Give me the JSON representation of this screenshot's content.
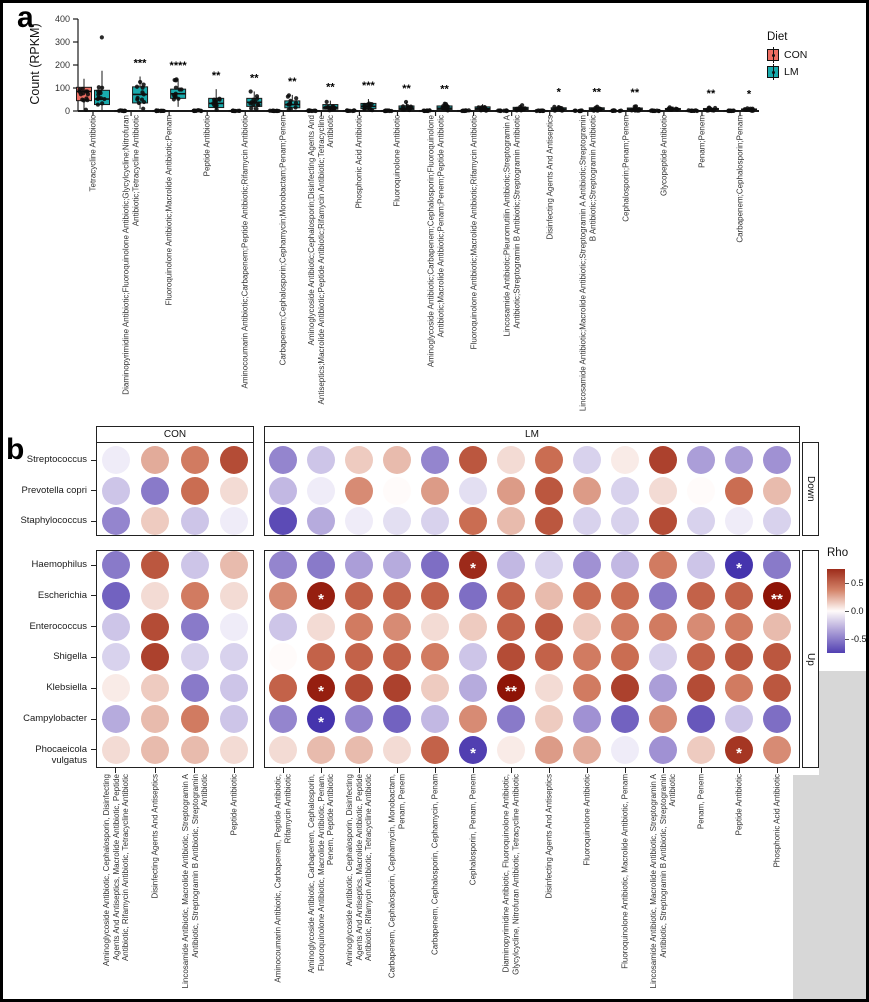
{
  "chart_data": [
    {
      "type": "box",
      "panel_label": "a",
      "title": "",
      "xlabel": "",
      "ylabel": "Count (RPKM)",
      "ylim": [
        0,
        400
      ],
      "yticks": [
        0,
        100,
        200,
        300,
        400
      ],
      "groups": [
        "CON",
        "LM"
      ],
      "legend": {
        "title": "Diet",
        "items": [
          {
            "label": "CON",
            "color": "#EE6E63"
          },
          {
            "label": "LM",
            "color": "#19ABAD"
          }
        ]
      },
      "box_stat_order": [
        "min",
        "q1",
        "median",
        "q3",
        "max"
      ],
      "categories": [
        {
          "label": "Tetracycline Antibiotic",
          "significance": "",
          "con": [
            2,
            45,
            85,
            103,
            140
          ],
          "con_outliers": [],
          "lm": [
            3,
            28,
            52,
            90,
            175
          ],
          "lm_outliers": [
            320
          ]
        },
        {
          "label": "Diaminopyrimidine Antibiotic;Fluoroquinolone Antibiotic;Glycylcycline;Nitrofuran Antibiotic;Tetracycline Antibiotic",
          "significance": "***",
          "con": [
            0,
            0,
            1,
            2,
            4
          ],
          "con_outliers": [],
          "lm": [
            8,
            35,
            72,
            105,
            150
          ],
          "lm_outliers": []
        },
        {
          "label": "Fluoroquinolone Antibiotic;Macrolide Antibiotic;Penam",
          "significance": "****",
          "con": [
            0,
            0,
            1,
            2,
            4
          ],
          "con_outliers": [],
          "lm": [
            18,
            55,
            75,
            95,
            140
          ],
          "lm_outliers": []
        },
        {
          "label": "Peptide Antibiotic",
          "significance": "**",
          "con": [
            0,
            0,
            1,
            2,
            4
          ],
          "con_outliers": [],
          "lm": [
            4,
            15,
            33,
            55,
            95
          ],
          "lm_outliers": []
        },
        {
          "label": "Aminocoumarin Antibiotic;Carbapenem;Peptide Antibiotic;Rifamycin Antibiotic",
          "significance": "**",
          "con": [
            0,
            0,
            1,
            2,
            4
          ],
          "con_outliers": [],
          "lm": [
            5,
            20,
            38,
            55,
            85
          ],
          "lm_outliers": []
        },
        {
          "label": "Carbapenem;Cephalosporin;Cephamycin;Monobactam;Penam;Penem",
          "significance": "**",
          "con": [
            0,
            0,
            1,
            2,
            4
          ],
          "con_outliers": [],
          "lm": [
            4,
            14,
            28,
            44,
            70
          ],
          "lm_outliers": []
        },
        {
          "label": "Aminoglycoside Antibiotic;Cephalosporin;Disinfecting Agents And Antiseptics;Macrolide Antibiotic;Peptide Antibiotic;Rifamycin Antibiotic;Tetracycline Antibiotic",
          "significance": "**",
          "con": [
            0,
            0,
            1,
            2,
            3
          ],
          "con_outliers": [],
          "lm": [
            2,
            8,
            15,
            28,
            45
          ],
          "lm_outliers": []
        },
        {
          "label": "Phosphonic Acid Antibiotic",
          "significance": "***",
          "con": [
            0,
            0,
            1,
            2,
            3
          ],
          "con_outliers": [],
          "lm": [
            2,
            10,
            20,
            33,
            52
          ],
          "lm_outliers": []
        },
        {
          "label": "Fluoroquinolone Antibiotic",
          "significance": "**",
          "con": [
            0,
            0,
            1,
            2,
            3
          ],
          "con_outliers": [],
          "lm": [
            2,
            6,
            12,
            22,
            40
          ],
          "lm_outliers": []
        },
        {
          "label": "Aminoglycoside Antibiotic;Carbapenem;Cephalosporin;Fluoroquinolone Antibiotic;Macrolide Antibiotic;Penam;Penem;Peptide Antibiotic",
          "significance": "**",
          "con": [
            0,
            0,
            1,
            2,
            3
          ],
          "con_outliers": [],
          "lm": [
            2,
            6,
            12,
            22,
            38
          ],
          "lm_outliers": []
        },
        {
          "label": "Fluoroquinolone Antibiotic;Macrolide Antibiotic;Rifamycin Antibiotic",
          "significance": "",
          "con": [
            0,
            0,
            1,
            2,
            3
          ],
          "con_outliers": [],
          "lm": [
            1,
            5,
            10,
            18,
            30
          ],
          "lm_outliers": []
        },
        {
          "label": "Lincosamide Antibiotic;Pleuromutilin Antibiotic;Streptogramin A Antibiotic;Streptogramin B Antibiotic;Streptogramin Antibiotic",
          "significance": "",
          "con": [
            0,
            0,
            1,
            2,
            3
          ],
          "con_outliers": [],
          "lm": [
            1,
            4,
            9,
            16,
            28
          ],
          "lm_outliers": []
        },
        {
          "label": "Disinfecting Agents And Antiseptics",
          "significance": "*",
          "con": [
            0,
            0,
            1,
            2,
            3
          ],
          "con_outliers": [],
          "lm": [
            1,
            4,
            8,
            14,
            25
          ],
          "lm_outliers": []
        },
        {
          "label": "Lincosamide Antibiotic;Macrolide Antibiotic;Streptogramin A Antibiotic;Streptogramin B Antibiotic;Streptogramin Antibiotic",
          "significance": "**",
          "con": [
            0,
            0,
            1,
            2,
            3
          ],
          "con_outliers": [],
          "lm": [
            1,
            4,
            8,
            14,
            24
          ],
          "lm_outliers": []
        },
        {
          "label": "Cephalosporin;Penam;Penem",
          "significance": "**",
          "con": [
            0,
            0,
            1,
            2,
            3
          ],
          "con_outliers": [],
          "lm": [
            1,
            3,
            7,
            13,
            22
          ],
          "lm_outliers": []
        },
        {
          "label": "Glycopeptide Antibiotic",
          "significance": "",
          "con": [
            0,
            0,
            1,
            2,
            3
          ],
          "con_outliers": [],
          "lm": [
            1,
            3,
            6,
            11,
            20
          ],
          "lm_outliers": []
        },
        {
          "label": "Penam;Penem",
          "significance": "**",
          "con": [
            0,
            0,
            1,
            2,
            3
          ],
          "con_outliers": [],
          "lm": [
            1,
            3,
            6,
            11,
            18
          ],
          "lm_outliers": []
        },
        {
          "label": "Carbapenem;Cephalosporin;Penam",
          "significance": "*",
          "con": [
            0,
            0,
            1,
            2,
            3
          ],
          "con_outliers": [],
          "lm": [
            0,
            2,
            5,
            9,
            15
          ],
          "lm_outliers": []
        }
      ]
    },
    {
      "type": "heatmap",
      "subtype": "dot-correlation",
      "panel_label": "b",
      "color_label": "Rho",
      "legend_ticks": [
        "0.5",
        "0.0",
        "-0.5"
      ],
      "color_scale": {
        "domain": [
          -0.85,
          0.85
        ],
        "positive_max": "#8E1407",
        "positive_mid": "#CE7357",
        "zero": "#FFFBFA",
        "negative_mid": "#9A8BD0",
        "negative_max": "#3A28A8"
      },
      "facets_x": [
        {
          "label": "CON",
          "columns": [
            "Aminoglycoside Antibiotic, Cephalosporin, Disinfecting Agents And Antiseptics, Macrolide Antibiotic, Peptide Antibiotic, Rifamycin Antibiotic, Tetracycline Antibiotic",
            "Disinfecting Agents And Antiseptics",
            "Lincosamide Antibiotic, Macrolide Antibiotic, Streptogramin A Antibiotic, Streptogramin B Antibiotic, Streptogramin Antibiotic",
            "Peptide Antibiotic"
          ]
        },
        {
          "label": "LM",
          "columns": [
            "Aminocoumarin Antibiotic, Carbapenem, Peptide Antibiotic, Rifamycin Antibiotic",
            "Aminoglycoside Antibiotic, Carbapenem, Cephalosporin, Fluoroquinolone Antibiotic, Macrolide Antibiotic, Penam, Penem, Peptide Antibiotic",
            "Aminoglycoside Antibiotic, Cephalosporin, Disinfecting Agents And Antiseptics, Macrolide Antibiotic, Peptide Antibiotic, Rifamycin Antibiotic, Tetracycline Antibiotic",
            "Carbapenem, Cephalosporin, Cephamycin, Monobactam, Penam, Penem",
            "Carbapenem, Cephalosporin, Cephamycin, Penam",
            "Cephalosporin, Penam, Penem",
            "Diaminopyrimidine Antibiotic, Fluoroquinolone Antibiotic, Glycylcycline, Nitrofuran Antibiotic, Tetracycline Antibiotic",
            "Disinfecting Agents And Antiseptics",
            "Fluoroquinolone Antibiotic",
            "Fluoroquinolone Antibiotic, Macrolide Antibiotic, Penam",
            "Lincosamide Antibiotic, Macrolide Antibiotic, Streptogramin A Antibiotic, Streptogramin B Antibiotic, Streptogramin Antibiotic",
            "Penam, Penem",
            "Peptide Antibiotic",
            "Phosphonic Acid Antibiotic"
          ]
        }
      ],
      "facets_y": [
        {
          "label": "Down",
          "rows": [
            "Streptococcus",
            "Prevotella copri",
            "Staphylococcus"
          ]
        },
        {
          "label": "Up",
          "rows": [
            "Haemophilus",
            "Escherichia",
            "Enterococcus",
            "Shigella",
            "Klebsiella",
            "Campylobacter",
            "Phocaeicola vulgatus"
          ]
        }
      ],
      "rows": [
        {
          "name": "Streptococcus",
          "group": "Down",
          "con": [
            -0.05,
            0.25,
            0.4,
            0.6
          ],
          "lm": [
            -0.45,
            -0.2,
            0.15,
            0.2,
            -0.45,
            0.55,
            0.1,
            0.45,
            -0.15,
            0.05,
            0.65,
            -0.35,
            -0.35,
            -0.4
          ],
          "stars_lm": {}
        },
        {
          "name": "Prevotella copri",
          "group": "Down",
          "con": [
            -0.2,
            -0.5,
            0.45,
            0.1
          ],
          "lm": [
            -0.25,
            -0.05,
            0.35,
            0.0,
            0.3,
            -0.1,
            0.3,
            0.55,
            0.3,
            -0.15,
            0.1,
            0.0,
            0.45,
            0.2
          ],
          "stars_lm": {}
        },
        {
          "name": "Staphylococcus",
          "group": "Down",
          "con": [
            -0.45,
            0.15,
            -0.2,
            -0.05
          ],
          "lm": [
            -0.7,
            -0.3,
            -0.05,
            -0.1,
            -0.15,
            0.45,
            0.2,
            0.55,
            -0.15,
            -0.15,
            0.6,
            -0.15,
            -0.05,
            -0.15
          ],
          "stars_lm": {}
        },
        {
          "name": "Haemophilus",
          "group": "Up",
          "con": [
            -0.5,
            0.55,
            -0.2,
            0.2
          ],
          "lm": [
            -0.45,
            -0.5,
            -0.35,
            -0.3,
            -0.55,
            0.75,
            -0.25,
            -0.15,
            -0.4,
            -0.25,
            0.4,
            -0.2,
            -0.8,
            -0.5
          ],
          "stars_lm": {
            "5": "*",
            "12": "*"
          }
        },
        {
          "name": "Escherichia",
          "group": "Up",
          "con": [
            -0.6,
            0.1,
            0.4,
            0.1
          ],
          "lm": [
            0.35,
            0.8,
            0.5,
            0.5,
            0.5,
            -0.55,
            0.5,
            0.2,
            0.45,
            0.45,
            -0.5,
            0.5,
            0.5,
            0.85
          ],
          "stars_lm": {
            "1": "*",
            "13": "**"
          }
        },
        {
          "name": "Enterococcus",
          "group": "Up",
          "con": [
            -0.2,
            0.6,
            -0.5,
            -0.05
          ],
          "lm": [
            -0.2,
            0.1,
            0.4,
            0.35,
            0.1,
            0.15,
            0.5,
            0.55,
            0.15,
            0.4,
            0.4,
            0.35,
            0.4,
            0.2
          ],
          "stars_lm": {}
        },
        {
          "name": "Shigella",
          "group": "Up",
          "con": [
            -0.15,
            0.65,
            -0.15,
            -0.15
          ],
          "lm": [
            0.0,
            0.5,
            0.5,
            0.5,
            0.4,
            -0.2,
            0.6,
            0.5,
            0.4,
            0.45,
            -0.15,
            0.5,
            0.55,
            0.55
          ],
          "stars_lm": {}
        },
        {
          "name": "Klebsiella",
          "group": "Up",
          "con": [
            0.05,
            0.15,
            -0.5,
            -0.2
          ],
          "lm": [
            0.5,
            0.8,
            0.6,
            0.65,
            0.15,
            -0.3,
            0.85,
            0.1,
            0.4,
            0.65,
            -0.35,
            0.6,
            0.4,
            0.55
          ],
          "stars_lm": {
            "1": "*",
            "6": "**"
          }
        },
        {
          "name": "Campylobacter",
          "group": "Up",
          "con": [
            -0.3,
            0.2,
            0.4,
            -0.2
          ],
          "lm": [
            -0.45,
            -0.8,
            -0.45,
            -0.6,
            -0.25,
            0.35,
            -0.5,
            0.15,
            -0.4,
            -0.6,
            0.35,
            -0.65,
            -0.2,
            -0.55
          ],
          "stars_lm": {
            "1": "*"
          }
        },
        {
          "name": "Phocaeicola vulgatus",
          "group": "Up",
          "con": [
            0.1,
            0.2,
            0.2,
            0.1
          ],
          "lm": [
            0.1,
            0.2,
            0.2,
            0.1,
            0.5,
            -0.75,
            0.05,
            0.3,
            0.25,
            -0.05,
            -0.4,
            0.15,
            0.7,
            0.35
          ],
          "stars_lm": {
            "5": "*",
            "12": "*"
          }
        }
      ]
    }
  ]
}
